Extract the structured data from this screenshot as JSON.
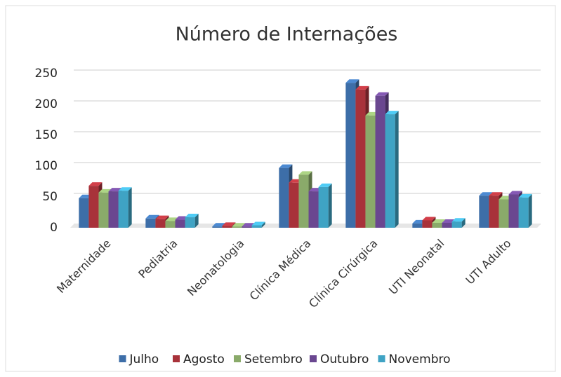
{
  "chart_data": {
    "type": "bar",
    "title": "Número de Internações",
    "categories": [
      "Maternidade",
      "Pediatria",
      "Neonatologia",
      "Clínica Médica",
      "Clínica Cirúrgica",
      "UTI Neonatal",
      "UTI Adulto"
    ],
    "series": [
      {
        "name": "Julho",
        "color": "#3d6ea8",
        "values": [
          48,
          15,
          2,
          97,
          235,
          7,
          52
        ]
      },
      {
        "name": "Agosto",
        "color": "#a8323a",
        "values": [
          68,
          14,
          3,
          73,
          224,
          12,
          52
        ]
      },
      {
        "name": "Setembro",
        "color": "#8aaa6a",
        "values": [
          57,
          11,
          2,
          86,
          182,
          8,
          46
        ]
      },
      {
        "name": "Outubro",
        "color": "#6a4790",
        "values": [
          59,
          13,
          2,
          59,
          214,
          8,
          54
        ]
      },
      {
        "name": "Novembro",
        "color": "#3fa3c4",
        "values": [
          60,
          17,
          4,
          66,
          184,
          10,
          49
        ]
      }
    ],
    "ylim": [
      0,
      250
    ],
    "yticks": [
      0,
      50,
      100,
      150,
      200,
      250
    ],
    "grid": true,
    "legend": "bottom"
  }
}
